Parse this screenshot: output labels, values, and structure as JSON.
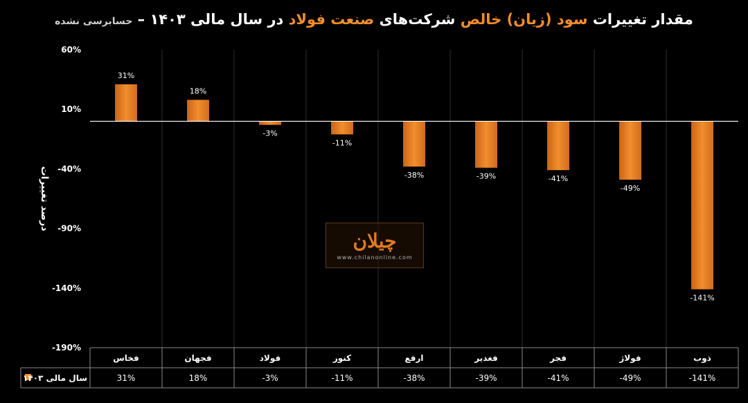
{
  "title": {
    "part1": "مقدار تغییرات",
    "part2": "سود (زیان) خالص",
    "part3": "شرکت‌های",
    "part4": "صنعت فولاد",
    "part5": "در سال مالی ۱۴۰۳ –",
    "subtitle": "حسابرسی نشده"
  },
  "watermark": {
    "logo": "چیلان",
    "url": "www.chilanonline.com"
  },
  "chart_data": {
    "type": "bar",
    "ylabel": "درصد تغییرات",
    "xlabel": "",
    "ylim": [
      -190,
      60
    ],
    "yticks": [
      60,
      10,
      -40,
      -90,
      -140,
      -190
    ],
    "ytick_labels": [
      "60%",
      "10%",
      "-40%",
      "-90%",
      "-140%",
      "-190%"
    ],
    "categories": [
      "فخاس",
      "فجهان",
      "فولاد",
      "کنور",
      "ارفع",
      "فغدیر",
      "فجر",
      "فولاژ",
      "ذوب"
    ],
    "series": [
      {
        "name": "سال مالی ۱۴۰۳",
        "color": "#f28e2b",
        "values": [
          31,
          18,
          -3,
          -11,
          -38,
          -39,
          -41,
          -49,
          -141
        ],
        "labels": [
          "31%",
          "18%",
          "-3%",
          "-11%",
          "-38%",
          "-39%",
          "-41%",
          "-49%",
          "-141%"
        ]
      }
    ],
    "grid": "vertical",
    "legend": "data-table-left"
  }
}
